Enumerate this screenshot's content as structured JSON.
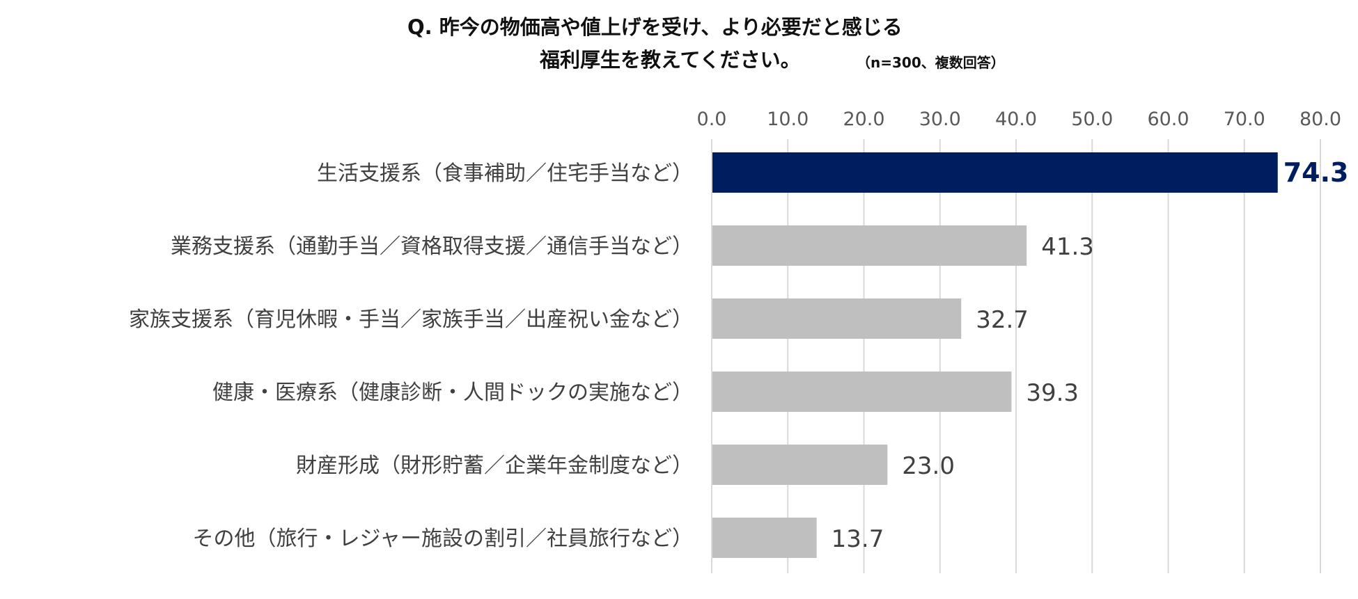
{
  "title": {
    "line1": "Q. 昨今の物価高や値上げを受け、より必要だと感じる",
    "line2": "福利厚生を教えてください。",
    "note": "（n=300、複数回答）"
  },
  "colors": {
    "highlight_bar": "#001E5F",
    "bar": "#BFBFBF",
    "grid": "#D9D9D9",
    "highlight_label": "#001E5F",
    "label": "#404040",
    "axis_text": "#595959"
  },
  "chart_data": {
    "type": "bar",
    "orientation": "horizontal",
    "categories": [
      "生活支援系（食事補助／住宅手当など）",
      "業務支援系（通勤手当／資格取得支援／通信手当など）",
      "家族支援系（育児休暇・手当／家族手当／出産祝い金など）",
      "健康・医療系（健康診断・人間ドックの実施など）",
      "財産形成（財形貯蓄／企業年金制度など）",
      "その他（旅行・レジャー施設の割引／社員旅行など）"
    ],
    "values": [
      74.3,
      41.3,
      32.7,
      39.3,
      23.0,
      13.7
    ],
    "value_labels": [
      "74.3",
      "41.3",
      "32.7",
      "39.3",
      "23.0",
      "13.7"
    ],
    "highlight_index": 0,
    "xlim": [
      0,
      80
    ],
    "ticks": [
      0,
      10,
      20,
      30,
      40,
      50,
      60,
      70,
      80
    ],
    "tick_labels": [
      "0.0",
      "10.0",
      "20.0",
      "30.0",
      "40.0",
      "50.0",
      "60.0",
      "70.0",
      "80.0"
    ],
    "axis_position": "top",
    "grid": true,
    "legend": "none"
  }
}
